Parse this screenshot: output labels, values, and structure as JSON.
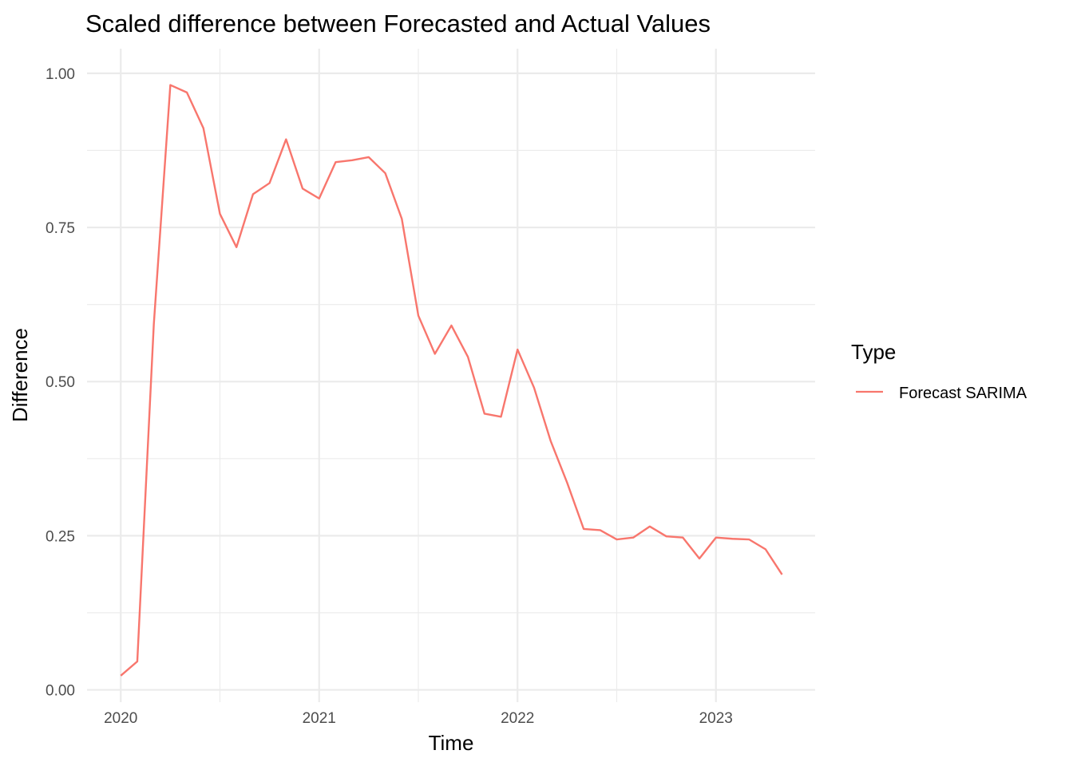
{
  "chart_data": {
    "type": "line",
    "title": "Scaled difference between Forecasted and Actual Values",
    "xlabel": "Time",
    "ylabel": "Difference",
    "xlim": [
      2019.83,
      2023.5
    ],
    "ylim": [
      -0.02,
      1.04
    ],
    "x_ticks": [
      2020,
      2021,
      2022,
      2023
    ],
    "x_tick_labels": [
      "2020",
      "2021",
      "2022",
      "2023"
    ],
    "y_ticks": [
      0,
      0.25,
      0.5,
      0.75,
      1.0
    ],
    "y_tick_labels": [
      "0.00",
      "0.25",
      "0.50",
      "0.75",
      "1.00"
    ],
    "grid": true,
    "legend": {
      "title": "Type",
      "placement": "right"
    },
    "series": [
      {
        "name": "Forecast SARIMA",
        "color": "#f8766d",
        "x": [
          "2020-01",
          "2020-02",
          "2020-03",
          "2020-04",
          "2020-05",
          "2020-06",
          "2020-07",
          "2020-08",
          "2020-09",
          "2020-10",
          "2020-11",
          "2020-12",
          "2021-01",
          "2021-02",
          "2021-03",
          "2021-04",
          "2021-05",
          "2021-06",
          "2021-07",
          "2021-08",
          "2021-09",
          "2021-10",
          "2021-11",
          "2021-12",
          "2022-01",
          "2022-02",
          "2022-03",
          "2022-04",
          "2022-05",
          "2022-06",
          "2022-07",
          "2022-08",
          "2022-09",
          "2022-10",
          "2022-11",
          "2022-12",
          "2023-01",
          "2023-02",
          "2023-03",
          "2023-04",
          "2023-05"
        ],
        "values": [
          0.023,
          0.046,
          0.593,
          0.981,
          0.969,
          0.911,
          0.772,
          0.718,
          0.804,
          0.822,
          0.893,
          0.813,
          0.797,
          0.856,
          0.859,
          0.864,
          0.838,
          0.764,
          0.607,
          0.545,
          0.591,
          0.54,
          0.448,
          0.443,
          0.552,
          0.49,
          0.404,
          0.336,
          0.261,
          0.259,
          0.244,
          0.247,
          0.265,
          0.249,
          0.247,
          0.213,
          0.247,
          0.245,
          0.244,
          0.228,
          0.187
        ]
      }
    ]
  }
}
